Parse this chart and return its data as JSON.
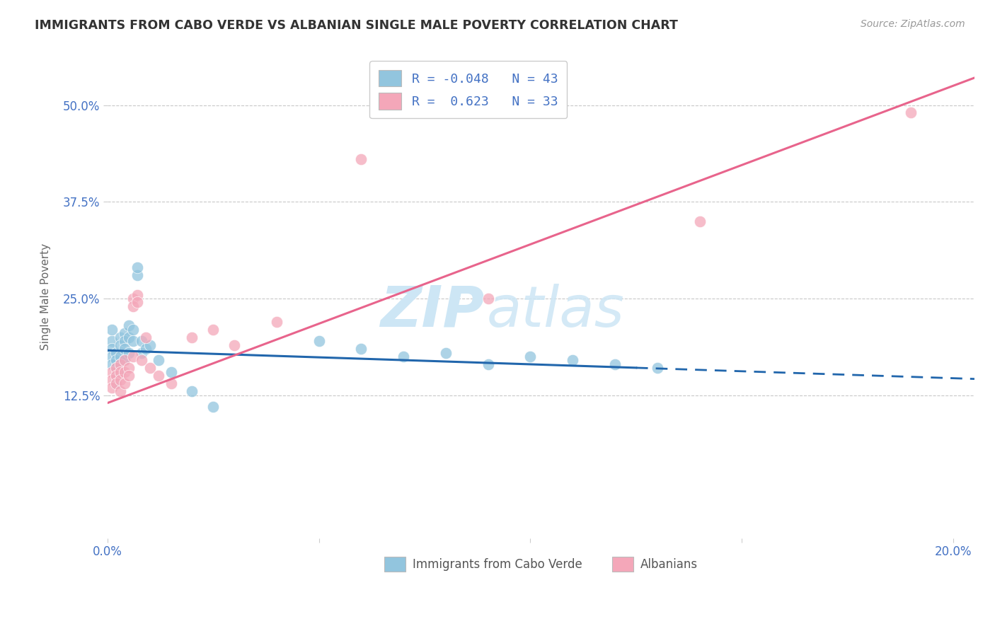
{
  "title": "IMMIGRANTS FROM CABO VERDE VS ALBANIAN SINGLE MALE POVERTY CORRELATION CHART",
  "source": "Source: ZipAtlas.com",
  "ylabel": "Single Male Poverty",
  "xlim": [
    0.0,
    0.205
  ],
  "ylim": [
    -0.06,
    0.565
  ],
  "yticks": [
    0.125,
    0.25,
    0.375,
    0.5
  ],
  "ytick_labels": [
    "12.5%",
    "25.0%",
    "37.5%",
    "50.0%"
  ],
  "xticks": [
    0.0,
    0.05,
    0.1,
    0.15,
    0.2
  ],
  "xtick_labels": [
    "0.0%",
    "",
    "",
    "",
    "20.0%"
  ],
  "R_blue": -0.048,
  "N_blue": 43,
  "R_pink": 0.623,
  "N_pink": 33,
  "cabo_verde_x": [
    0.001,
    0.001,
    0.001,
    0.001,
    0.001,
    0.002,
    0.002,
    0.002,
    0.002,
    0.002,
    0.003,
    0.003,
    0.003,
    0.003,
    0.003,
    0.004,
    0.004,
    0.004,
    0.004,
    0.005,
    0.005,
    0.005,
    0.006,
    0.006,
    0.007,
    0.007,
    0.008,
    0.008,
    0.009,
    0.01,
    0.012,
    0.015,
    0.02,
    0.025,
    0.05,
    0.06,
    0.07,
    0.08,
    0.09,
    0.1,
    0.11,
    0.12,
    0.13
  ],
  "cabo_verde_y": [
    0.195,
    0.185,
    0.175,
    0.165,
    0.21,
    0.18,
    0.17,
    0.16,
    0.15,
    0.14,
    0.2,
    0.19,
    0.175,
    0.165,
    0.155,
    0.205,
    0.195,
    0.185,
    0.17,
    0.215,
    0.2,
    0.18,
    0.21,
    0.195,
    0.28,
    0.29,
    0.195,
    0.18,
    0.185,
    0.19,
    0.17,
    0.155,
    0.13,
    0.11,
    0.195,
    0.185,
    0.175,
    0.18,
    0.165,
    0.175,
    0.17,
    0.165,
    0.16
  ],
  "albanian_x": [
    0.001,
    0.001,
    0.001,
    0.002,
    0.002,
    0.002,
    0.003,
    0.003,
    0.003,
    0.003,
    0.004,
    0.004,
    0.004,
    0.005,
    0.005,
    0.006,
    0.006,
    0.006,
    0.007,
    0.007,
    0.008,
    0.009,
    0.01,
    0.012,
    0.015,
    0.02,
    0.025,
    0.03,
    0.04,
    0.06,
    0.09,
    0.14,
    0.19
  ],
  "albanian_y": [
    0.155,
    0.145,
    0.135,
    0.16,
    0.15,
    0.14,
    0.165,
    0.155,
    0.145,
    0.13,
    0.17,
    0.155,
    0.14,
    0.16,
    0.15,
    0.175,
    0.25,
    0.24,
    0.255,
    0.245,
    0.17,
    0.2,
    0.16,
    0.15,
    0.14,
    0.2,
    0.21,
    0.19,
    0.22,
    0.43,
    0.25,
    0.35,
    0.49
  ],
  "blue_color": "#92c5de",
  "pink_color": "#f4a7b9",
  "blue_line_color": "#2166ac",
  "pink_line_color": "#e8648c",
  "background_color": "#ffffff",
  "grid_color": "#c8c8c8",
  "watermark_color": "#cde6f5",
  "blue_line_intercept": 0.183,
  "blue_line_slope": -0.18,
  "pink_line_intercept": 0.115,
  "pink_line_slope": 2.05
}
